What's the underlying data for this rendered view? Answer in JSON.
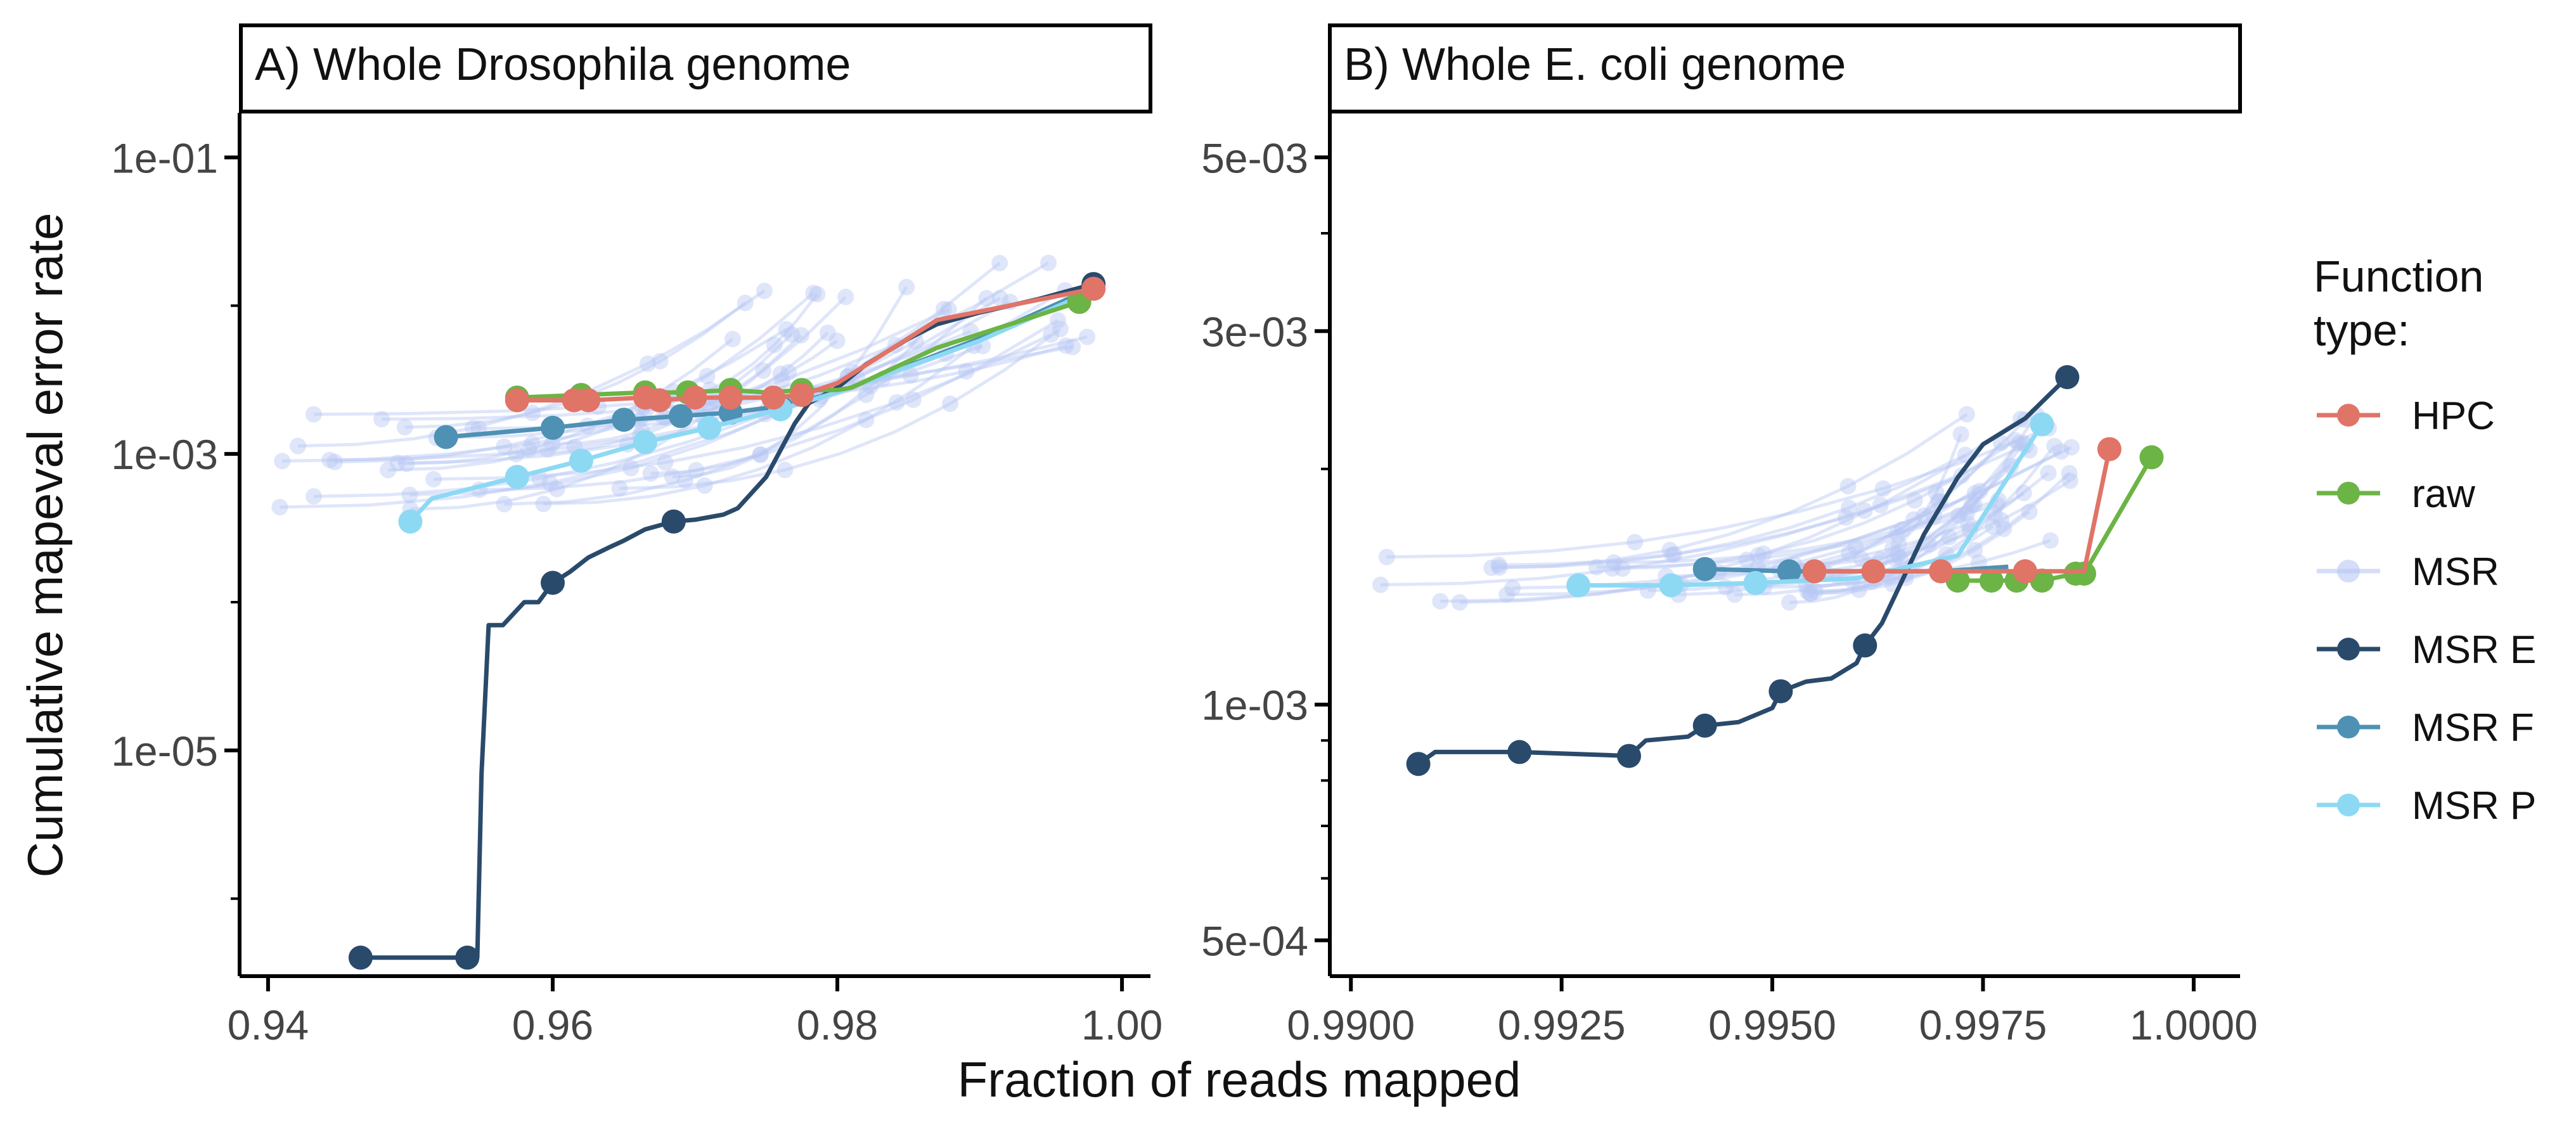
{
  "figure": {
    "xlabel": "Fraction of reads mapped",
    "ylabel": "Cumulative mapeval error rate",
    "legend_title_line1": "Function",
    "legend_title_line2": "type:",
    "legend_position": "right",
    "colors": {
      "HPC": "#E07467",
      "raw": "#6BB445",
      "MSR": "#B9C7F4",
      "MSR E": "#2A4A6B",
      "MSR F": "#4E91B4",
      "MSR P": "#8DD9F4"
    },
    "legend": [
      {
        "name": "HPC"
      },
      {
        "name": "raw"
      },
      {
        "name": "MSR"
      },
      {
        "name": "MSR E"
      },
      {
        "name": "MSR F"
      },
      {
        "name": "MSR P"
      }
    ]
  },
  "chart_data": [
    {
      "type": "line",
      "title": "A) Whole Drosophila genome",
      "xlabel": "Fraction of reads mapped",
      "ylabel": "Cumulative mapeval error rate",
      "x_ticks": [
        "0.94",
        "0.96",
        "0.98",
        "1.00"
      ],
      "x_tick_values": [
        0.94,
        0.96,
        0.98,
        1.0
      ],
      "y_ticks": [
        "1e-05",
        "1e-03",
        "1e-01"
      ],
      "y_tick_values": [
        1e-05,
        0.001,
        0.1
      ],
      "y_scale": "log",
      "xlim": [
        0.938,
        1.002
      ],
      "ylim": [
        3e-07,
        0.2
      ],
      "grid": false,
      "series": [
        {
          "name": "HPC",
          "x": [
            0.9575,
            0.9615,
            0.9625,
            0.9665,
            0.9675,
            0.97,
            0.9725,
            0.9755,
            0.9775,
            0.98,
            0.987,
            0.998
          ],
          "y": [
            0.0023,
            0.0023,
            0.0023,
            0.0024,
            0.0023,
            0.0024,
            0.0024,
            0.0024,
            0.0025,
            0.003,
            0.008,
            0.013
          ],
          "markers": [
            0.9575,
            0.9615,
            0.9625,
            0.9665,
            0.9675,
            0.97,
            0.9725,
            0.9755,
            0.9775,
            0.998
          ]
        },
        {
          "name": "raw",
          "x": [
            0.9575,
            0.962,
            0.9665,
            0.9695,
            0.9725,
            0.975,
            0.9775,
            0.98,
            0.981,
            0.987,
            0.997
          ],
          "y": [
            0.0024,
            0.0025,
            0.0026,
            0.0026,
            0.0027,
            0.0026,
            0.0027,
            0.0027,
            0.0028,
            0.0052,
            0.0106
          ],
          "markers": [
            0.9575,
            0.962,
            0.9665,
            0.9695,
            0.9725,
            0.9775,
            0.997
          ]
        },
        {
          "name": "MSR E",
          "x": [
            0.9465,
            0.954,
            0.9547,
            0.955,
            0.9555,
            0.9565,
            0.958,
            0.959,
            0.96,
            0.9612,
            0.9625,
            0.964,
            0.965,
            0.9665,
            0.9685,
            0.97,
            0.972,
            0.973,
            0.975,
            0.977,
            0.978,
            0.98,
            0.982,
            0.985,
            0.987,
            0.99,
            0.994,
            0.998
          ],
          "y": [
            4e-07,
            4e-07,
            4e-07,
            7e-06,
            7e-05,
            7e-05,
            0.0001,
            0.0001,
            0.000135,
            0.00016,
            0.0002,
            0.000235,
            0.00026,
            0.00031,
            0.00035,
            0.00036,
            0.00039,
            0.00043,
            0.0007,
            0.0016,
            0.0022,
            0.0028,
            0.004,
            0.006,
            0.0075,
            0.009,
            0.011,
            0.014
          ],
          "markers": [
            0.9465,
            0.954,
            0.96,
            0.9645,
            0.9685,
            0.9725,
            0.998
          ]
        },
        {
          "name": "MSR F",
          "x": [
            0.9525,
            0.96,
            0.965,
            0.969,
            0.9725,
            0.976,
            0.98,
            0.99,
            0.997
          ],
          "y": [
            0.0013,
            0.0015,
            0.0017,
            0.0018,
            0.0019,
            0.0021,
            0.0026,
            0.006,
            0.012
          ],
          "markers": [
            0.9525,
            0.96,
            0.965,
            0.969,
            0.9725,
            0.976
          ]
        },
        {
          "name": "MSR P",
          "x": [
            0.95,
            0.9515,
            0.9575,
            0.962,
            0.9665,
            0.971,
            0.976,
            0.98,
            0.99,
            0.997
          ],
          "y": [
            0.00035,
            0.0005,
            0.0007,
            0.0009,
            0.0012,
            0.0015,
            0.002,
            0.0026,
            0.0058,
            0.0115
          ],
          "markers": [
            0.95,
            0.9575,
            0.962,
            0.9665,
            0.971,
            0.976
          ]
        }
      ]
    },
    {
      "type": "line",
      "title": "B) Whole E. coli genome",
      "xlabel": "Fraction of reads mapped",
      "ylabel": "Cumulative mapeval error rate",
      "x_ticks": [
        "0.9900",
        "0.9925",
        "0.9950",
        "0.9975",
        "1.0000"
      ],
      "x_tick_values": [
        0.99,
        0.9925,
        0.995,
        0.9975,
        1.0
      ],
      "y_ticks": [
        "5e-04",
        "1e-03",
        "3e-03",
        "5e-03"
      ],
      "y_tick_values": [
        0.0005,
        0.001,
        0.003,
        0.005
      ],
      "y_scale": "log",
      "xlim": [
        0.98975,
        1.00055
      ],
      "ylim": [
        0.00045,
        0.0057
      ],
      "grid": false,
      "series": [
        {
          "name": "HPC",
          "x": [
            0.9955,
            0.9962,
            0.997,
            0.998,
            0.9987,
            0.999
          ],
          "y": [
            0.00148,
            0.00148,
            0.00148,
            0.00148,
            0.00148,
            0.00212
          ],
          "markers": [
            0.9955,
            0.9962,
            0.997,
            0.998,
            0.999
          ]
        },
        {
          "name": "raw",
          "x": [
            0.9972,
            0.9976,
            0.9979,
            0.9982,
            0.9986,
            0.9987,
            0.9995
          ],
          "y": [
            0.00144,
            0.00144,
            0.00144,
            0.00144,
            0.00147,
            0.00147,
            0.00207
          ],
          "markers": [
            0.9972,
            0.9976,
            0.9979,
            0.9982,
            0.9986,
            0.9987,
            0.9995
          ]
        },
        {
          "name": "MSR E",
          "x": [
            0.9908,
            0.991,
            0.992,
            0.9933,
            0.9935,
            0.994,
            0.9942,
            0.9946,
            0.995,
            0.9951,
            0.9954,
            0.9957,
            0.996,
            0.9961,
            0.9963,
            0.9968,
            0.9972,
            0.9975,
            0.998,
            0.9985
          ],
          "y": [
            0.00084,
            0.00087,
            0.00087,
            0.00086,
            0.0009,
            0.00091,
            0.00094,
            0.00095,
            0.00099,
            0.00104,
            0.00107,
            0.00108,
            0.00113,
            0.00119,
            0.00127,
            0.00165,
            0.00195,
            0.00215,
            0.00232,
            0.00262
          ],
          "markers": [
            0.9908,
            0.992,
            0.9933,
            0.9942,
            0.9951,
            0.9961,
            0.9985
          ]
        },
        {
          "name": "MSR F",
          "x": [
            0.9942,
            0.9952,
            0.996,
            0.997,
            0.9978
          ],
          "y": [
            0.00149,
            0.00148,
            0.00148,
            0.00148,
            0.0015
          ],
          "markers": [
            0.9942,
            0.9952
          ]
        },
        {
          "name": "MSR P",
          "x": [
            0.9927,
            0.9938,
            0.9948,
            0.996,
            0.9972,
            0.9982
          ],
          "y": [
            0.00142,
            0.00142,
            0.00143,
            0.00145,
            0.00155,
            0.00228
          ],
          "markers": [
            0.9927,
            0.9938,
            0.9948,
            0.9982
          ]
        }
      ]
    }
  ]
}
